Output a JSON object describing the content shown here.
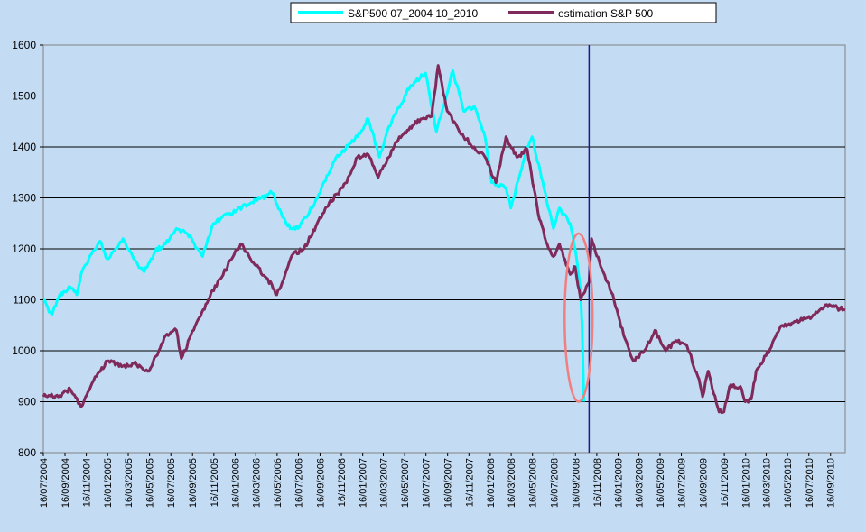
{
  "chart_data": {
    "type": "line",
    "title": "",
    "xlabel": "",
    "ylabel": "",
    "ylim": [
      800,
      1600
    ],
    "y_ticks": [
      800,
      900,
      1000,
      1100,
      1200,
      1300,
      1400,
      1500,
      1600
    ],
    "xlim": [
      "16/07/2004",
      "28/10/2010"
    ],
    "x_tick_labels": [
      "16/07/2004",
      "16/09/2004",
      "16/11/2004",
      "16/01/2005",
      "16/03/2005",
      "16/05/2005",
      "16/07/2005",
      "16/09/2005",
      "16/11/2005",
      "16/01/2006",
      "16/03/2006",
      "16/05/2006",
      "16/07/2006",
      "16/09/2006",
      "16/11/2006",
      "16/01/2007",
      "16/03/2007",
      "16/05/2007",
      "16/07/2007",
      "16/09/2007",
      "16/11/2007",
      "16/01/2008",
      "16/03/2008",
      "16/05/2008",
      "16/07/2008",
      "16/09/2008",
      "16/11/2008",
      "16/01/2009",
      "16/03/2009",
      "16/05/2009",
      "16/07/2009",
      "16/09/2009",
      "16/11/2009",
      "16/01/2010",
      "16/03/2010",
      "16/05/2010",
      "16/07/2010",
      "16/09/2010"
    ],
    "grid": "horizontal",
    "legend_position": "top-center",
    "vertical_marker": "25/10/2008",
    "annotation": {
      "type": "ellipse",
      "center": [
        "25/09/2008",
        1065
      ],
      "x_half_width_days": 40,
      "y_half_height": 165,
      "color": "#f08080"
    },
    "series": [
      {
        "name": "S&P500 07_2004 10_2010",
        "color": "#00ffff",
        "points": [
          [
            "16/07/2004",
            1100
          ],
          [
            "10/08/2004",
            1070
          ],
          [
            "01/09/2004",
            1110
          ],
          [
            "01/10/2004",
            1125
          ],
          [
            "20/10/2004",
            1110
          ],
          [
            "01/11/2004",
            1150
          ],
          [
            "01/12/2004",
            1190
          ],
          [
            "25/12/2004",
            1215
          ],
          [
            "15/01/2005",
            1180
          ],
          [
            "01/02/2005",
            1195
          ],
          [
            "01/03/2005",
            1220
          ],
          [
            "01/04/2005",
            1180
          ],
          [
            "01/05/2005",
            1155
          ],
          [
            "01/06/2005",
            1195
          ],
          [
            "01/07/2005",
            1210
          ],
          [
            "01/08/2005",
            1240
          ],
          [
            "01/09/2005",
            1230
          ],
          [
            "15/10/2005",
            1185
          ],
          [
            "15/11/2005",
            1250
          ],
          [
            "01/01/2006",
            1270
          ],
          [
            "01/03/2006",
            1290
          ],
          [
            "01/05/2006",
            1310
          ],
          [
            "15/06/2006",
            1245
          ],
          [
            "15/07/2006",
            1240
          ],
          [
            "01/09/2006",
            1290
          ],
          [
            "01/11/2006",
            1380
          ],
          [
            "01/01/2007",
            1420
          ],
          [
            "01/02/2007",
            1455
          ],
          [
            "05/03/2007",
            1380
          ],
          [
            "01/04/2007",
            1440
          ],
          [
            "01/06/2007",
            1520
          ],
          [
            "15/07/2007",
            1545
          ],
          [
            "15/08/2007",
            1430
          ],
          [
            "01/10/2007",
            1550
          ],
          [
            "01/11/2007",
            1470
          ],
          [
            "01/12/2007",
            1480
          ],
          [
            "01/01/2008",
            1420
          ],
          [
            "20/01/2008",
            1330
          ],
          [
            "01/03/2008",
            1320
          ],
          [
            "15/03/2008",
            1280
          ],
          [
            "01/05/2008",
            1400
          ],
          [
            "15/05/2008",
            1420
          ],
          [
            "15/07/2008",
            1240
          ],
          [
            "01/08/2008",
            1280
          ],
          [
            "01/09/2008",
            1250
          ],
          [
            "15/09/2008",
            1200
          ],
          [
            "30/09/2008",
            1120
          ],
          [
            "05/10/2008",
            1050
          ],
          [
            "10/10/2008",
            900
          ]
        ]
      },
      {
        "name": "estimation S&P 500",
        "color": "#7f2a5a",
        "points": [
          [
            "16/07/2004",
            910
          ],
          [
            "01/09/2004",
            912
          ],
          [
            "01/10/2004",
            925
          ],
          [
            "01/11/2004",
            890
          ],
          [
            "15/12/2004",
            950
          ],
          [
            "15/01/2005",
            980
          ],
          [
            "01/03/2005",
            970
          ],
          [
            "01/04/2005",
            975
          ],
          [
            "15/05/2005",
            960
          ],
          [
            "01/07/2005",
            1030
          ],
          [
            "01/08/2005",
            1040
          ],
          [
            "15/08/2005",
            985
          ],
          [
            "01/10/2005",
            1060
          ],
          [
            "01/12/2005",
            1140
          ],
          [
            "01/02/2006",
            1210
          ],
          [
            "01/03/2006",
            1180
          ],
          [
            "01/05/2006",
            1130
          ],
          [
            "15/05/2006",
            1110
          ],
          [
            "01/07/2006",
            1190
          ],
          [
            "01/08/2006",
            1200
          ],
          [
            "01/10/2006",
            1280
          ],
          [
            "01/12/2006",
            1330
          ],
          [
            "01/01/2007",
            1380
          ],
          [
            "01/02/2007",
            1385
          ],
          [
            "01/03/2007",
            1340
          ],
          [
            "01/04/2007",
            1380
          ],
          [
            "01/05/2007",
            1420
          ],
          [
            "01/07/2007",
            1455
          ],
          [
            "01/08/2007",
            1460
          ],
          [
            "20/08/2007",
            1560
          ],
          [
            "15/09/2007",
            1470
          ],
          [
            "01/11/2007",
            1420
          ],
          [
            "01/12/2007",
            1400
          ],
          [
            "01/01/2008",
            1380
          ],
          [
            "01/02/2008",
            1330
          ],
          [
            "01/03/2008",
            1420
          ],
          [
            "01/04/2008",
            1380
          ],
          [
            "01/05/2008",
            1395
          ],
          [
            "01/06/2008",
            1270
          ],
          [
            "01/07/2008",
            1200
          ],
          [
            "15/07/2008",
            1185
          ],
          [
            "01/08/2008",
            1210
          ],
          [
            "01/09/2008",
            1150
          ],
          [
            "15/09/2008",
            1165
          ],
          [
            "01/10/2008",
            1100
          ],
          [
            "25/10/2008",
            1135
          ],
          [
            "01/11/2008",
            1220
          ],
          [
            "01/12/2008",
            1160
          ],
          [
            "01/01/2009",
            1110
          ],
          [
            "01/02/2009",
            1030
          ],
          [
            "01/03/2009",
            980
          ],
          [
            "01/04/2009",
            1000
          ],
          [
            "01/05/2009",
            1040
          ],
          [
            "01/06/2009",
            1000
          ],
          [
            "01/07/2009",
            1020
          ],
          [
            "01/08/2009",
            1010
          ],
          [
            "01/09/2009",
            950
          ],
          [
            "15/09/2009",
            910
          ],
          [
            "01/10/2009",
            960
          ],
          [
            "01/11/2009",
            880
          ],
          [
            "15/11/2009",
            880
          ],
          [
            "01/12/2009",
            930
          ],
          [
            "01/01/2010",
            930
          ],
          [
            "15/01/2010",
            900
          ],
          [
            "01/02/2010",
            905
          ],
          [
            "15/02/2010",
            960
          ],
          [
            "15/03/2010",
            990
          ],
          [
            "01/05/2010",
            1050
          ],
          [
            "01/06/2010",
            1055
          ],
          [
            "01/08/2010",
            1070
          ],
          [
            "01/09/2010",
            1090
          ],
          [
            "28/10/2010",
            1080
          ]
        ]
      }
    ]
  }
}
